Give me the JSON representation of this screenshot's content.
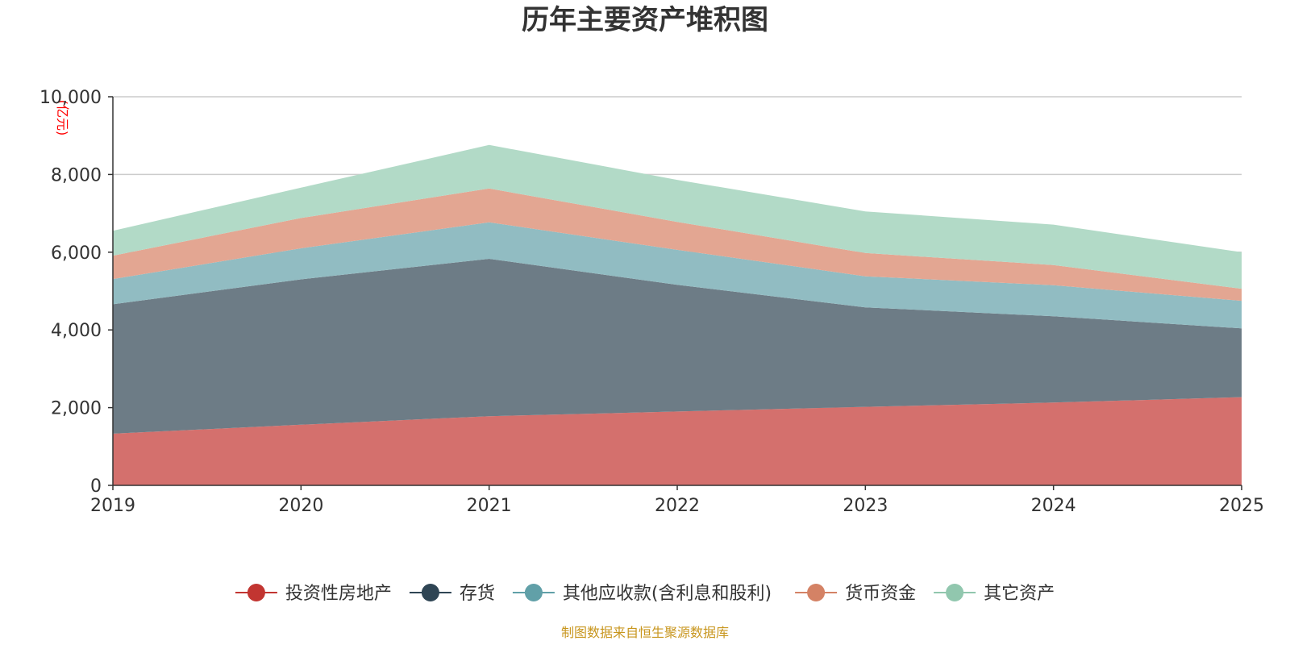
{
  "chart_data": {
    "type": "area",
    "stacked": true,
    "title": "历年主要资产堆积图",
    "unit_label": "(亿元)",
    "x": [
      "2019",
      "2020",
      "2021",
      "2022",
      "2023",
      "2024",
      "2025"
    ],
    "ylim": [
      0,
      10000
    ],
    "yticks": [
      0,
      2000,
      4000,
      6000,
      8000,
      10000
    ],
    "ytick_labels": [
      "0",
      "2,000",
      "4,000",
      "6,000",
      "8,000",
      "10,000"
    ],
    "grid": true,
    "legend_position": "bottom",
    "series": [
      {
        "name": "投资性房地产",
        "color": "#c23531",
        "fill": "#d4706d",
        "values": [
          1330,
          1560,
          1780,
          1900,
          2020,
          2130,
          2270
        ]
      },
      {
        "name": "存货",
        "color": "#2f4554",
        "fill": "#6d7c86",
        "values": [
          3330,
          3740,
          4050,
          3260,
          2560,
          2220,
          1770
        ]
      },
      {
        "name": "其他应收款(含利息和股利)",
        "color": "#61a0a8",
        "fill": "#91bcc2",
        "values": [
          650,
          800,
          940,
          900,
          800,
          800,
          710
        ]
      },
      {
        "name": "货币资金",
        "color": "#d48265",
        "fill": "#e3a692",
        "values": [
          600,
          780,
          870,
          720,
          600,
          520,
          310
        ]
      },
      {
        "name": "其它资产",
        "color": "#91c7ae",
        "fill": "#b2dac7",
        "values": [
          640,
          780,
          1120,
          1080,
          1070,
          1040,
          940
        ]
      }
    ],
    "source": "制图数据来自恒生聚源数据库"
  }
}
